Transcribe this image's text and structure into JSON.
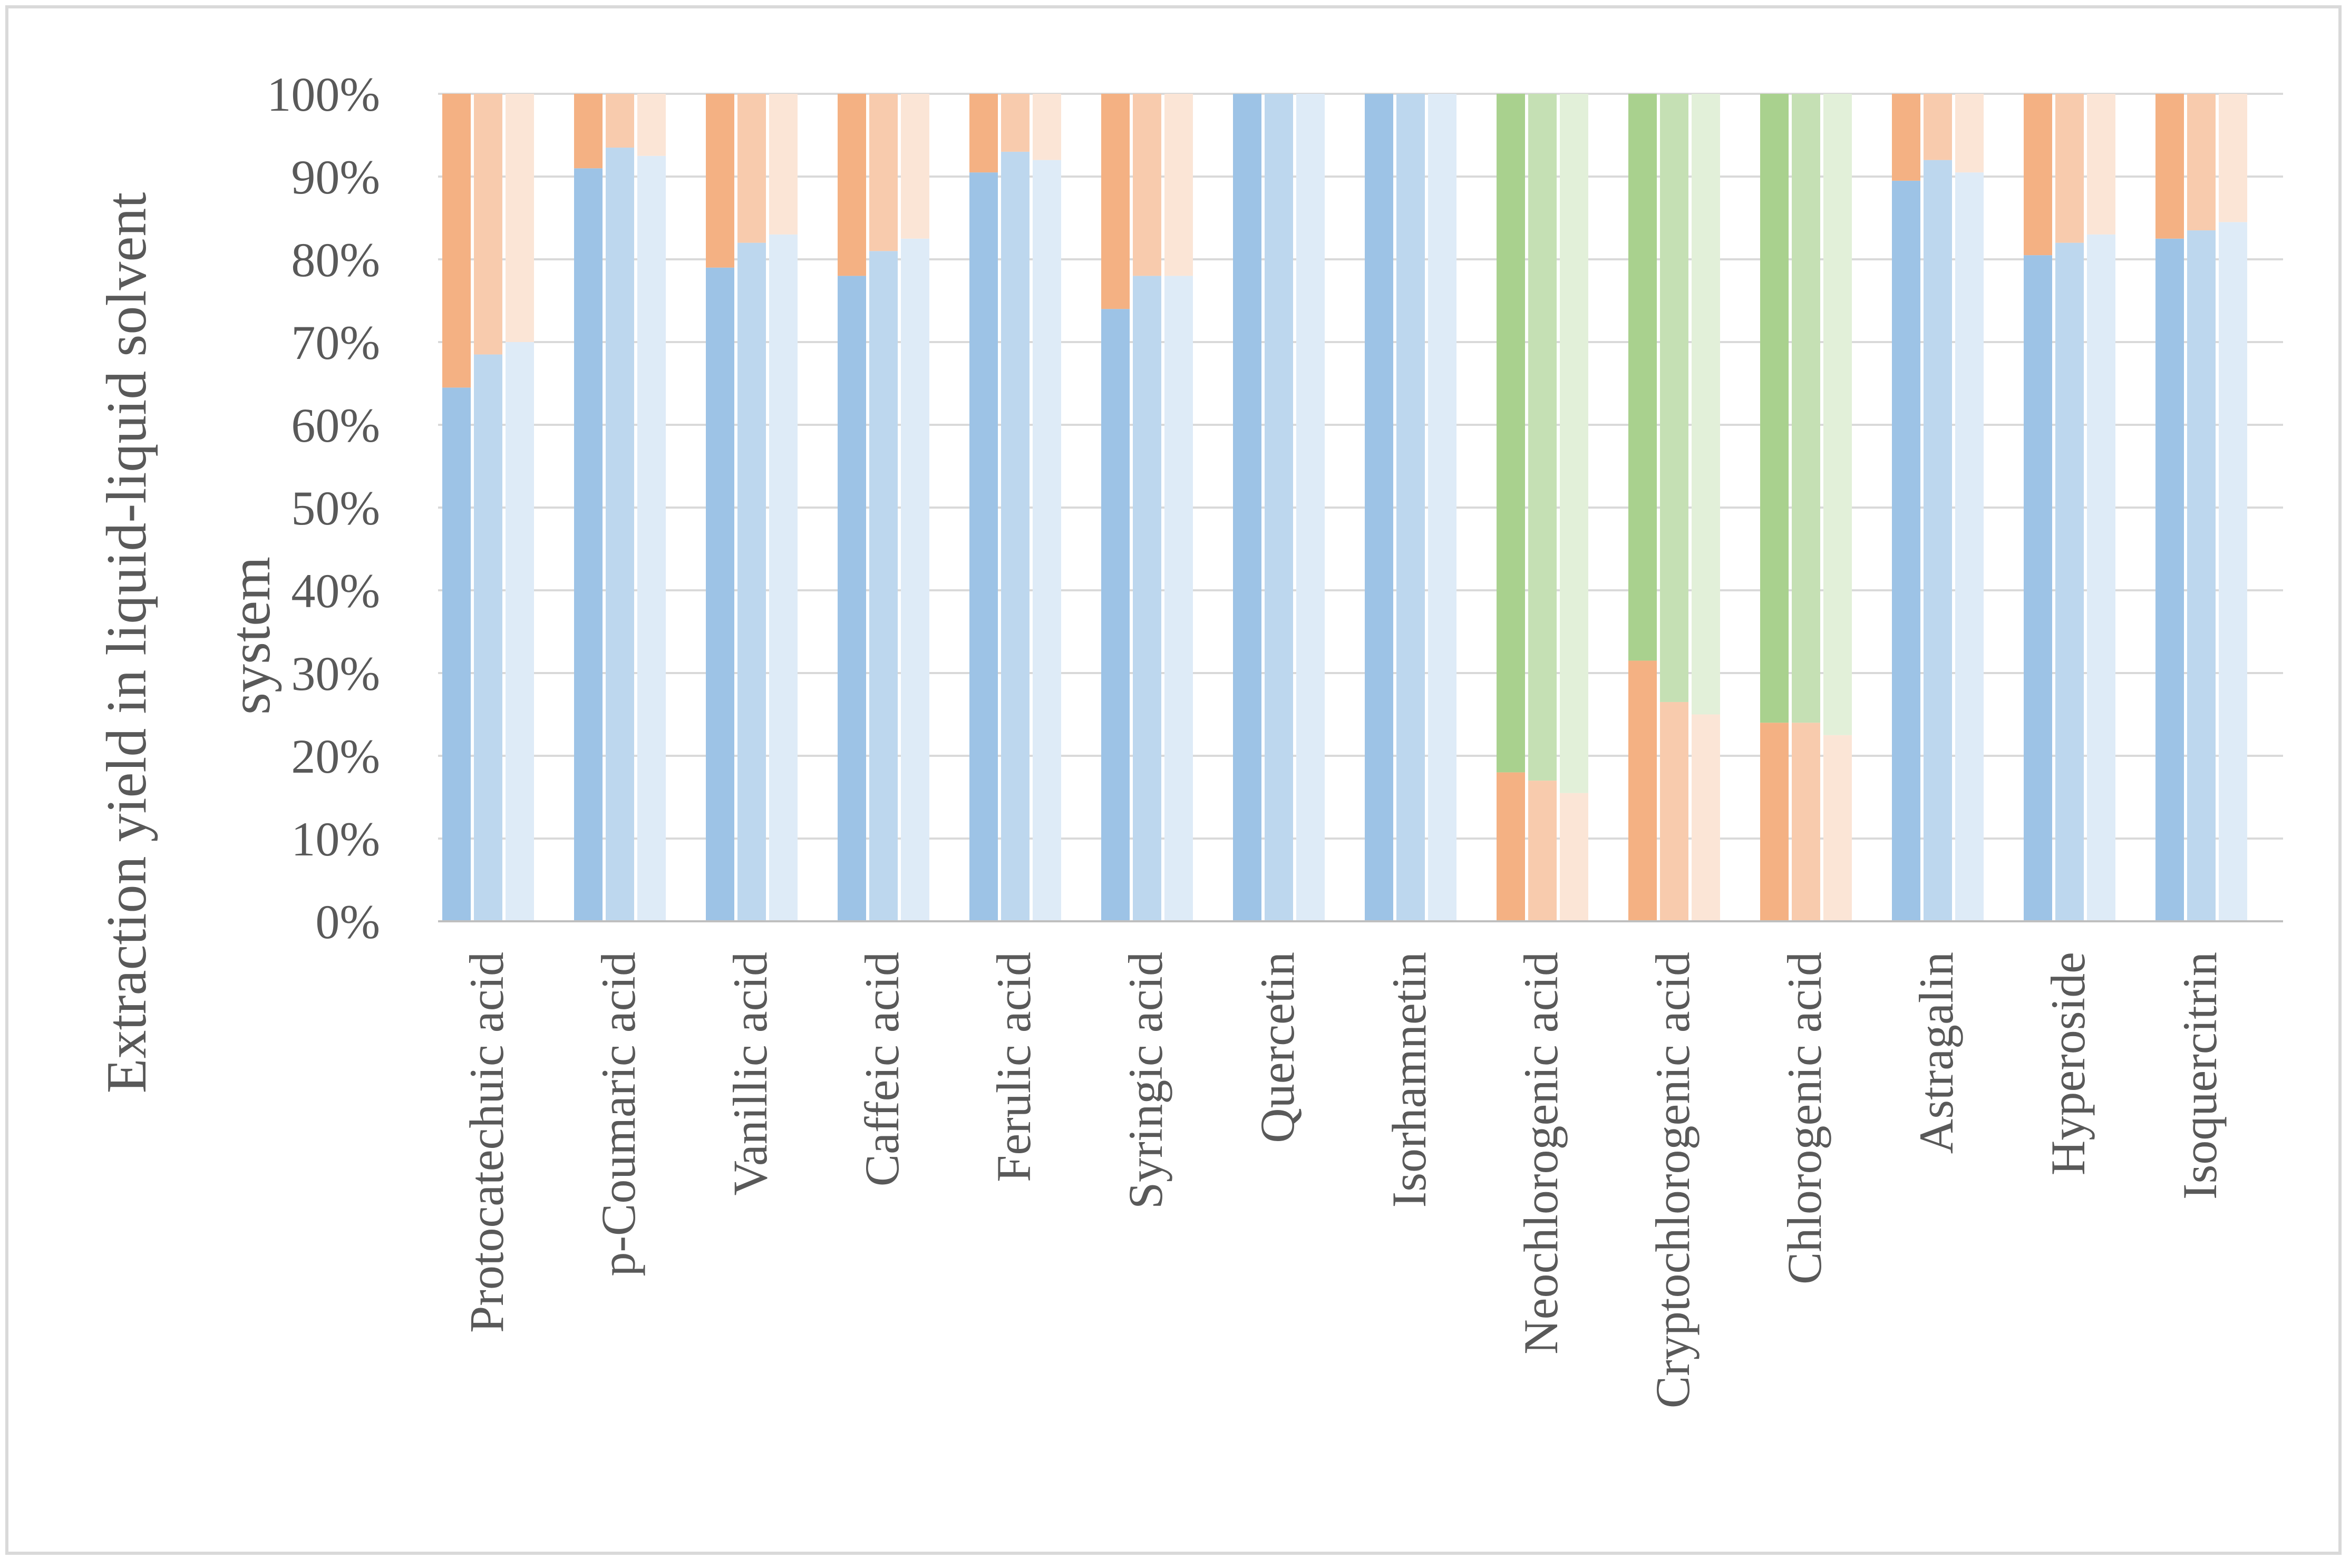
{
  "chart_data": {
    "type": "bar",
    "stacked": true,
    "percent_stacked": true,
    "title": "",
    "xlabel": "",
    "ylabel": "Extraction yield in liquid-liquid solvent system",
    "ylabel_lines": [
      "Extraction yield in liquid-liquid solvent",
      "system"
    ],
    "ylim": [
      0,
      100
    ],
    "yticks": [
      "0%",
      "10%",
      "20%",
      "30%",
      "40%",
      "50%",
      "60%",
      "70%",
      "80%",
      "90%",
      "100%"
    ],
    "grid": true,
    "legend": "none",
    "bars_per_category": 3,
    "categories": [
      "Protocatechuic acid",
      "p-Coumaric acid",
      "Vanillic acid",
      "Caffeic acid",
      "Ferulic acid",
      "Syringic acid",
      "Quercetin",
      "Isorhamnetin",
      "Neochlorogenic acid",
      "Cryptochlorogenic acid",
      "Chlorogenic acid",
      "Astragalin",
      "Hyperoside",
      "Isoquercitrin"
    ],
    "bottom_component_colors": [
      [
        "#9dc3e6",
        "#bdd7ee",
        "#deebf7"
      ],
      [
        "#9dc3e6",
        "#bdd7ee",
        "#deebf7"
      ],
      [
        "#9dc3e6",
        "#bdd7ee",
        "#deebf7"
      ],
      [
        "#9dc3e6",
        "#bdd7ee",
        "#deebf7"
      ],
      [
        "#9dc3e6",
        "#bdd7ee",
        "#deebf7"
      ],
      [
        "#9dc3e6",
        "#bdd7ee",
        "#deebf7"
      ],
      [
        "#9dc3e6",
        "#bdd7ee",
        "#deebf7"
      ],
      [
        "#9dc3e6",
        "#bdd7ee",
        "#deebf7"
      ],
      [
        "#f4b183",
        "#f8cbad",
        "#fbe5d6"
      ],
      [
        "#f4b183",
        "#f8cbad",
        "#fbe5d6"
      ],
      [
        "#f4b183",
        "#f8cbad",
        "#fbe5d6"
      ],
      [
        "#9dc3e6",
        "#bdd7ee",
        "#deebf7"
      ],
      [
        "#9dc3e6",
        "#bdd7ee",
        "#deebf7"
      ],
      [
        "#9dc3e6",
        "#bdd7ee",
        "#deebf7"
      ]
    ],
    "top_component_colors": [
      [
        "#f4b183",
        "#f8cbad",
        "#fbe5d6"
      ],
      [
        "#f4b183",
        "#f8cbad",
        "#fbe5d6"
      ],
      [
        "#f4b183",
        "#f8cbad",
        "#fbe5d6"
      ],
      [
        "#f4b183",
        "#f8cbad",
        "#fbe5d6"
      ],
      [
        "#f4b183",
        "#f8cbad",
        "#fbe5d6"
      ],
      [
        "#f4b183",
        "#f8cbad",
        "#fbe5d6"
      ],
      [
        "#f4b183",
        "#f8cbad",
        "#fbe5d6"
      ],
      [
        "#f4b183",
        "#f8cbad",
        "#fbe5d6"
      ],
      [
        "#a9d18e",
        "#c5e0b4",
        "#e2f0d9"
      ],
      [
        "#a9d18e",
        "#c5e0b4",
        "#e2f0d9"
      ],
      [
        "#a9d18e",
        "#c5e0b4",
        "#e2f0d9"
      ],
      [
        "#f4b183",
        "#f8cbad",
        "#fbe5d6"
      ],
      [
        "#f4b183",
        "#f8cbad",
        "#fbe5d6"
      ],
      [
        "#f4b183",
        "#f8cbad",
        "#fbe5d6"
      ]
    ],
    "bottom_values": [
      [
        64.5,
        68.5,
        70
      ],
      [
        91,
        93.5,
        92.5
      ],
      [
        79,
        82,
        83
      ],
      [
        78,
        81,
        82.5
      ],
      [
        90.5,
        93,
        92
      ],
      [
        74,
        78,
        78
      ],
      [
        100,
        100,
        100
      ],
      [
        100,
        100,
        100
      ],
      [
        18,
        17,
        15.5
      ],
      [
        31.5,
        26.5,
        25
      ],
      [
        24,
        24,
        22.5
      ],
      [
        89.5,
        92,
        90.5
      ],
      [
        80.5,
        82,
        83
      ],
      [
        82.5,
        83.5,
        84.5
      ]
    ]
  },
  "colors": {
    "gridline": "#d9d9d9",
    "axis": "#bfbfbf",
    "text": "#595959"
  }
}
